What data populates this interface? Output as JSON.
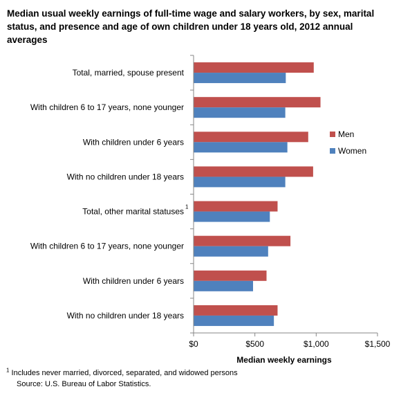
{
  "chart_data": {
    "type": "bar",
    "orientation": "horizontal",
    "title": "Median usual weekly earnings of full-time wage and salary workers, by sex, marital status, and presence and age of own children under 18 years old, 2012 annual averages",
    "categories": [
      "Total, married, spouse present",
      "With children 6 to 17 years, none younger",
      "With children under 6 years",
      "With no children under 18 years",
      "Total, other marital statuses",
      "With children 6 to 17 years, none younger",
      "With children under 6 years",
      "With no children under 18 years"
    ],
    "category_superscripts": [
      "",
      "",
      "",
      "",
      "1",
      "",
      "",
      ""
    ],
    "series": [
      {
        "name": "Men",
        "color": "#c0504d",
        "values": [
          980,
          1035,
          935,
          975,
          685,
          790,
          595,
          685
        ]
      },
      {
        "name": "Women",
        "color": "#4f81bd",
        "values": [
          752,
          748,
          765,
          748,
          622,
          608,
          485,
          655
        ]
      }
    ],
    "xlabel": "Median weekly earnings",
    "ylabel": "",
    "xlim": [
      0,
      1500
    ],
    "xticks": [
      0,
      500,
      1000,
      1500
    ],
    "xtick_labels": [
      "$0",
      "$500",
      "$1,000",
      "$1,500"
    ],
    "grid": false,
    "legend_position": "right"
  },
  "footnote": {
    "marker": "1",
    "text": "Includes never married, divorced, separated, and widowed persons",
    "source": "Source: U.S. Bureau of Labor Statistics."
  }
}
